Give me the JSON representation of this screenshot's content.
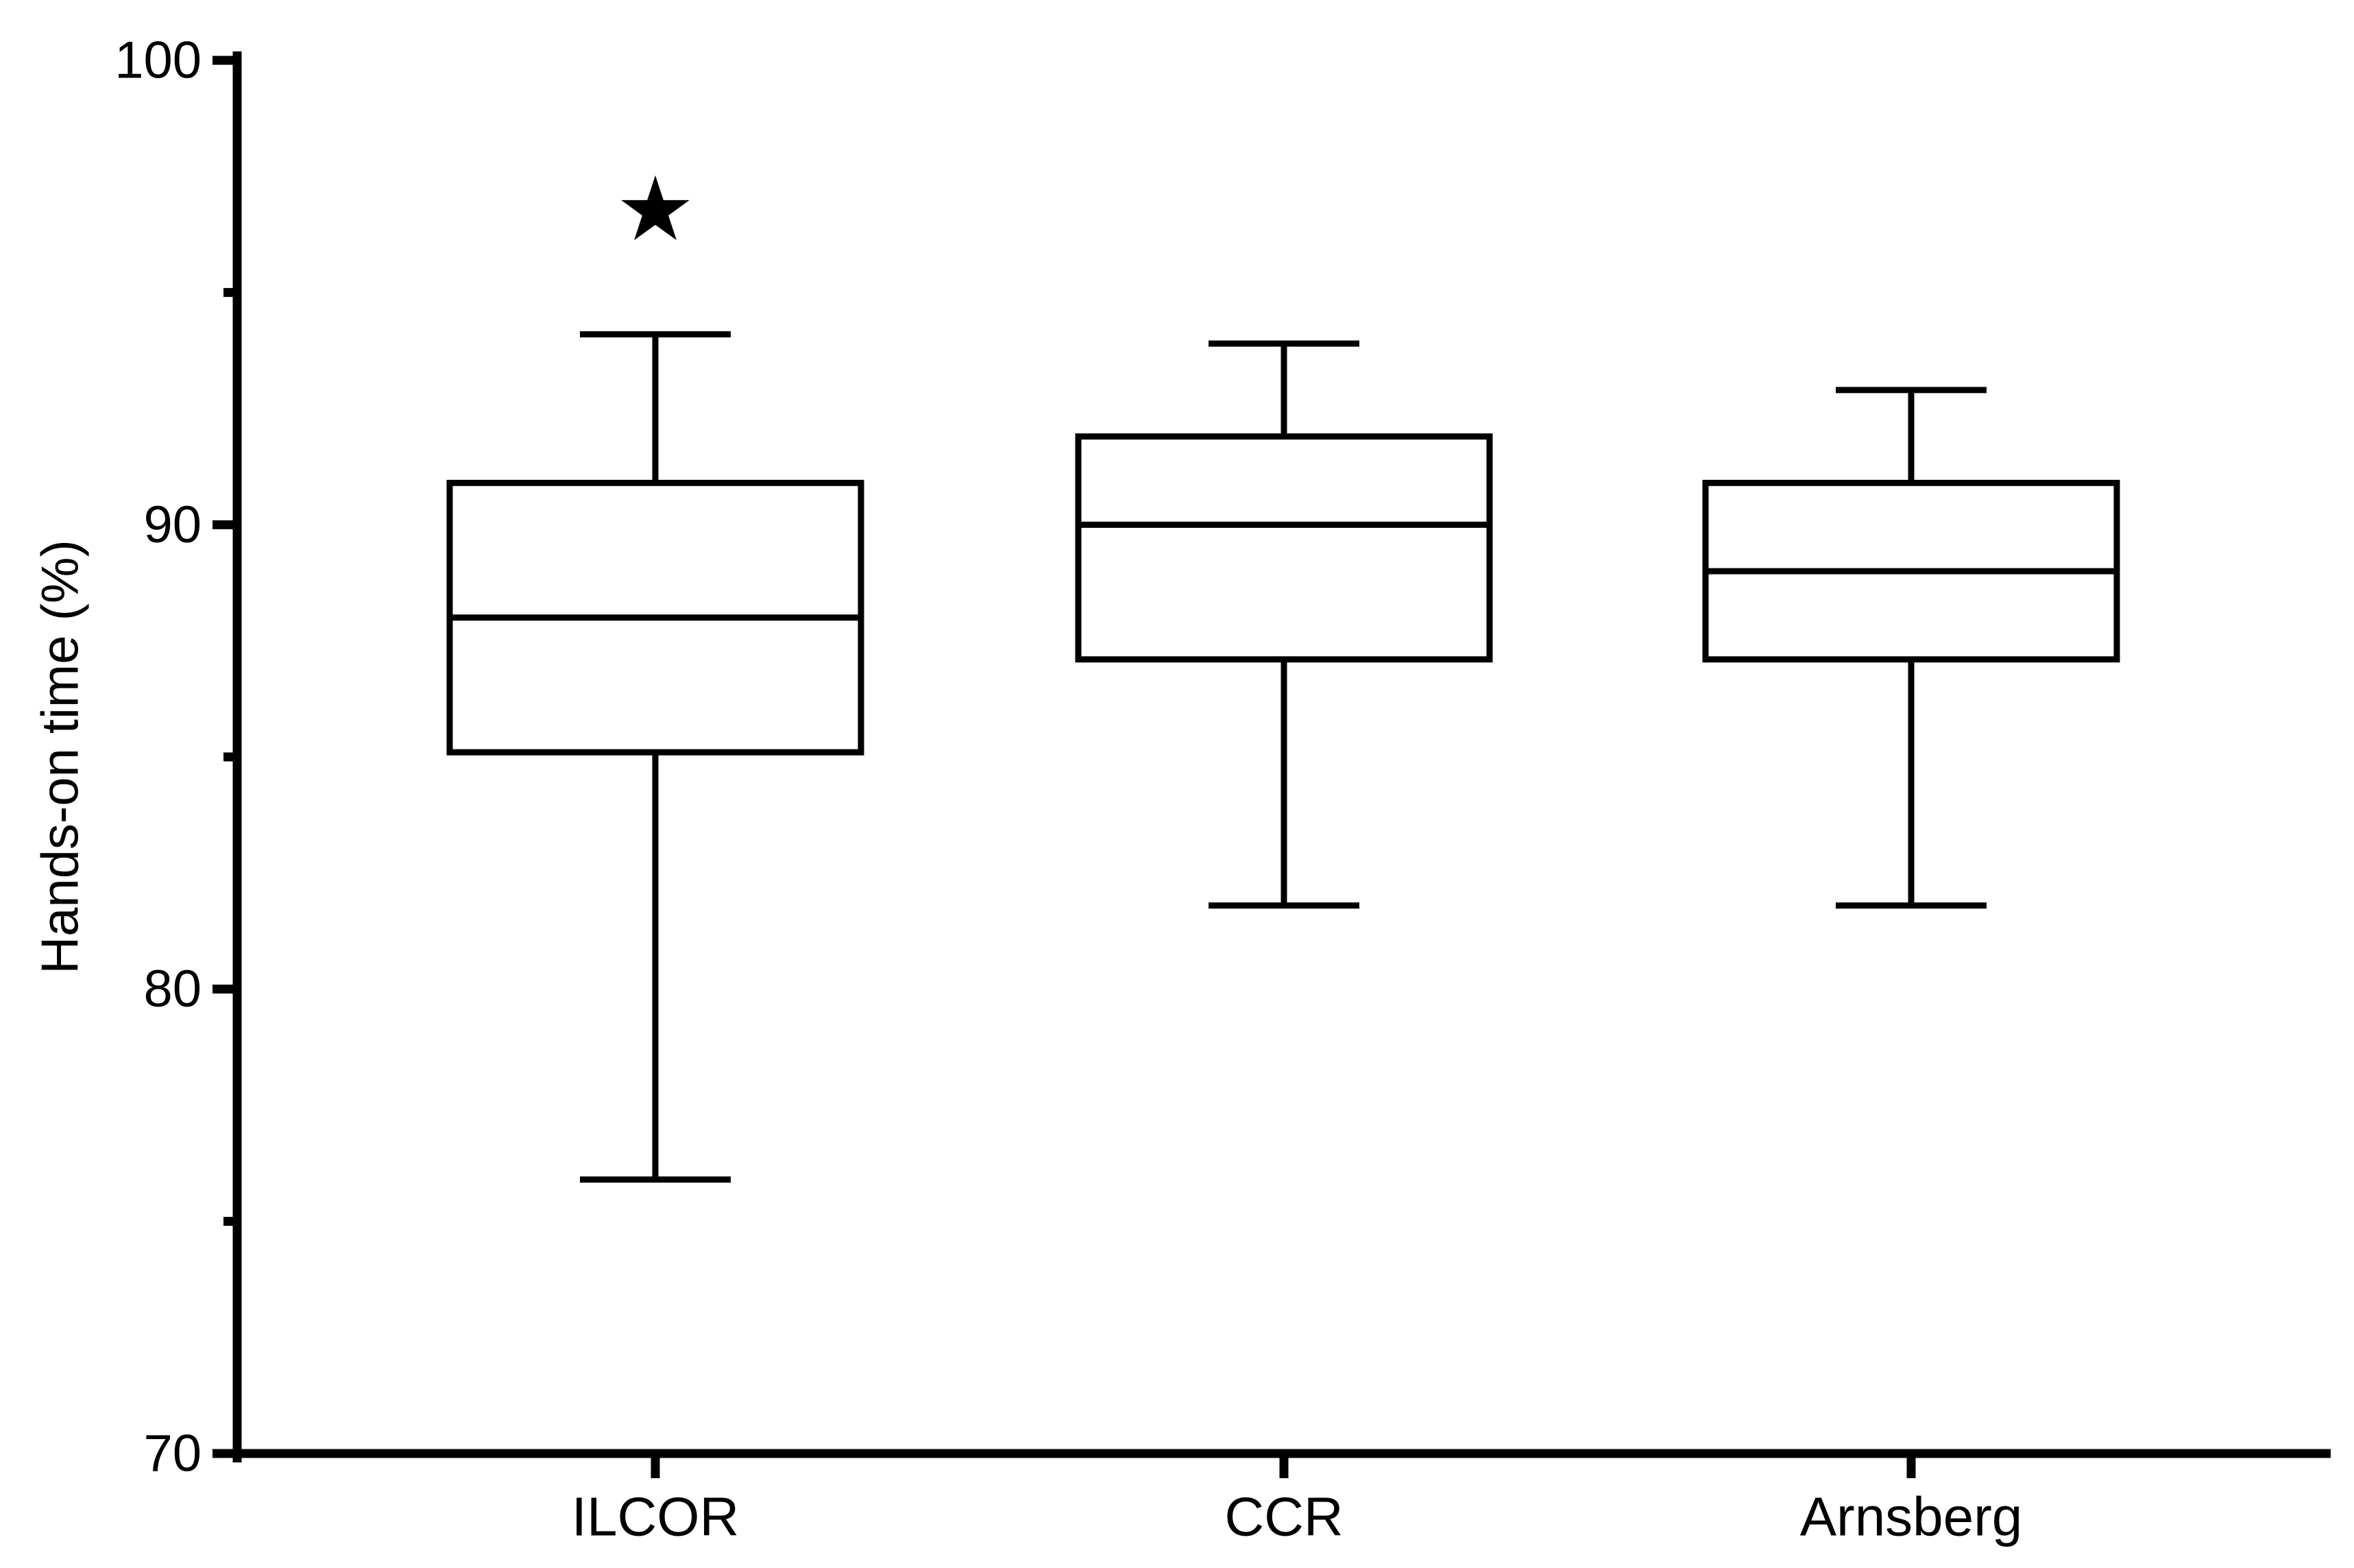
{
  "chart_data": {
    "type": "box",
    "title": "",
    "xlabel": "",
    "ylabel": "Hands-on time (%)",
    "ylim": [
      70,
      100
    ],
    "yticks": [
      70,
      80,
      90,
      100
    ],
    "y_minor_ticks": [
      75,
      85,
      95
    ],
    "grid": false,
    "legend": "none",
    "categories": [
      "ILCOR",
      "CCR",
      "Arnsberg"
    ],
    "boxes": [
      {
        "category": "ILCOR",
        "whisker_low": 75.9,
        "q1": 85.1,
        "median": 88.0,
        "q3": 90.9,
        "whisker_high": 94.1
      },
      {
        "category": "CCR",
        "whisker_low": 81.8,
        "q1": 87.1,
        "median": 90.0,
        "q3": 91.9,
        "whisker_high": 93.9
      },
      {
        "category": "Arnsberg",
        "whisker_low": 81.8,
        "q1": 87.1,
        "median": 89.0,
        "q3": 90.9,
        "whisker_high": 92.9
      }
    ],
    "annotations": [
      {
        "category": "ILCOR",
        "symbol": "★",
        "y": 96.8
      }
    ],
    "colors": {
      "stroke": "#000000",
      "box_fill": "#ffffff"
    }
  }
}
